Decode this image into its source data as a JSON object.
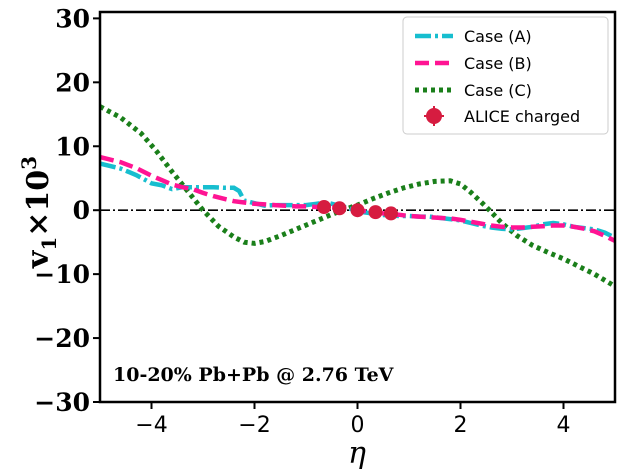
{
  "chart_data": {
    "type": "line",
    "xlabel": "η",
    "ylabel_main": "v",
    "ylabel_sub": "1",
    "ylabel_rest": "×10",
    "ylabel_sup": "3",
    "xlim": [
      -5,
      5
    ],
    "ylim": [
      -30,
      31
    ],
    "xticks": [
      -4,
      -2,
      0,
      2,
      4
    ],
    "xtick_labels": [
      "−4",
      "−2",
      "0",
      "2",
      "4"
    ],
    "yticks": [
      30,
      20,
      10,
      0,
      -10,
      -20,
      -30
    ],
    "ytick_labels": [
      "30",
      "20",
      "10",
      "0",
      "−10",
      "−20",
      "−30"
    ],
    "annotation": "10-20% Pb+Pb @ 2.76 TeV",
    "reference_line_y": 0,
    "series": [
      {
        "name": "Case (A)",
        "color": "#17becf",
        "style": "dashdot",
        "x": [
          -5,
          -4.6,
          -4.3,
          -4.0,
          -3.8,
          -3.6,
          -3.4,
          -3.2,
          -3.0,
          -2.8,
          -2.6,
          -2.4,
          -2.3,
          -2.2,
          -2.0,
          -1.8,
          -1.6,
          -1.4,
          -1.2,
          -1.0,
          -0.8,
          -0.6,
          -0.4,
          -0.2,
          0,
          0.2,
          0.4,
          0.6,
          0.8,
          1.0,
          1.2,
          1.4,
          1.6,
          1.8,
          2.0,
          2.2,
          2.4,
          2.6,
          2.8,
          3.0,
          3.2,
          3.4,
          3.6,
          3.8,
          4.0,
          4.2,
          4.4,
          4.6,
          4.8,
          5.0
        ],
        "y": [
          7.3,
          6.5,
          5.5,
          4.2,
          3.9,
          3.3,
          3.6,
          3.6,
          3.6,
          3.6,
          3.5,
          3.5,
          3.0,
          1.5,
          1.1,
          0.7,
          0.8,
          0.8,
          0.8,
          0.8,
          1.0,
          1.2,
          0.8,
          0.4,
          -0.2,
          -0.4,
          -0.7,
          -0.8,
          -0.9,
          -0.9,
          -1.0,
          -1.0,
          -1.2,
          -1.4,
          -1.6,
          -2.0,
          -2.4,
          -2.7,
          -2.9,
          -3.0,
          -2.8,
          -2.6,
          -2.2,
          -2.0,
          -2.2,
          -2.6,
          -2.8,
          -3.0,
          -3.5,
          -4.3
        ]
      },
      {
        "name": "Case (B)",
        "color": "#ff1493",
        "style": "dashed",
        "x": [
          -5,
          -4.6,
          -4.3,
          -4.0,
          -3.8,
          -3.6,
          -3.4,
          -3.2,
          -3.0,
          -2.8,
          -2.6,
          -2.4,
          -2.2,
          -2.0,
          -1.8,
          -1.6,
          -1.4,
          -1.2,
          -1.0,
          -0.8,
          -0.6,
          -0.4,
          -0.2,
          0,
          0.2,
          0.4,
          0.6,
          0.8,
          1.0,
          1.2,
          1.4,
          1.6,
          1.8,
          2.0,
          2.2,
          2.4,
          2.6,
          2.8,
          3.0,
          3.2,
          3.4,
          3.6,
          3.8,
          4.0,
          4.2,
          4.4,
          4.6,
          4.8,
          5.0
        ],
        "y": [
          8.3,
          7.5,
          6.6,
          5.4,
          4.7,
          4.0,
          3.6,
          3.3,
          2.7,
          2.2,
          1.8,
          1.4,
          1.2,
          1.0,
          0.9,
          0.8,
          0.7,
          0.6,
          0.6,
          0.5,
          0.5,
          0.4,
          0.2,
          0.0,
          -0.2,
          -0.4,
          -0.6,
          -0.7,
          -0.9,
          -1.0,
          -1.1,
          -1.2,
          -1.3,
          -1.5,
          -1.8,
          -2.1,
          -2.4,
          -2.6,
          -2.7,
          -2.7,
          -2.6,
          -2.5,
          -2.4,
          -2.4,
          -2.6,
          -2.9,
          -3.3,
          -4.0,
          -4.8
        ]
      },
      {
        "name": "Case (C)",
        "color": "#1a7f1a",
        "style": "dotted",
        "x": [
          -5,
          -4.6,
          -4.2,
          -3.9,
          -3.6,
          -3.3,
          -3.0,
          -2.7,
          -2.4,
          -2.2,
          -2.0,
          -1.8,
          -1.5,
          -1.2,
          -0.9,
          -0.6,
          -0.3,
          0,
          0.3,
          0.6,
          0.9,
          1.2,
          1.5,
          1.8,
          2.0,
          2.2,
          2.5,
          2.8,
          3.1,
          3.4,
          3.7,
          4.0,
          4.3,
          4.6,
          5.0
        ],
        "y": [
          16.2,
          14.5,
          12.0,
          9.2,
          6.0,
          3.0,
          0.0,
          -2.5,
          -4.2,
          -5.0,
          -5.2,
          -4.9,
          -4.0,
          -3.0,
          -2.0,
          -1.0,
          0.0,
          0.8,
          1.8,
          2.7,
          3.5,
          4.1,
          4.5,
          4.6,
          4.1,
          2.8,
          0.5,
          -2.0,
          -4.0,
          -5.5,
          -6.6,
          -7.6,
          -8.8,
          -10.0,
          -11.9
        ]
      }
    ],
    "errorbar_series": {
      "name": "ALICE charged",
      "color": "#d61c40",
      "x": [
        -0.65,
        -0.35,
        0.0,
        0.35,
        0.65
      ],
      "y": [
        0.5,
        0.3,
        0.0,
        -0.3,
        -0.5
      ],
      "yerr": [
        0.4,
        0.3,
        0.3,
        0.3,
        0.4
      ]
    },
    "legend_position": "top-right"
  }
}
